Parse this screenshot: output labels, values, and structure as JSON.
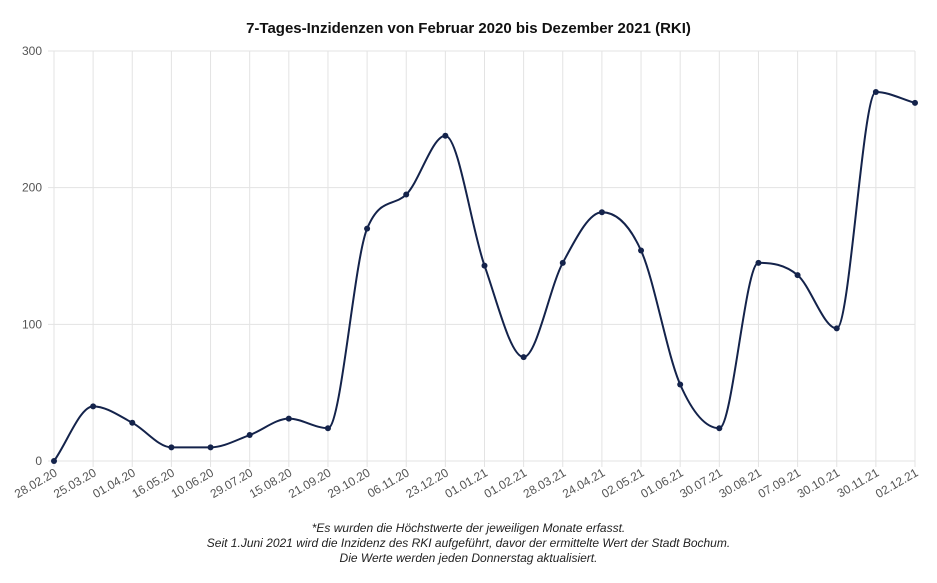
{
  "chart_data": {
    "type": "line",
    "title": "7-Tages-Inzidenzen von Februar 2020 bis Dezember 2021 (RKI)",
    "xlabel": "",
    "ylabel": "",
    "ylim": [
      0,
      300
    ],
    "yticks": [
      "0",
      "100",
      "200",
      "300"
    ],
    "grid": true,
    "legend": "none",
    "categories": [
      "28.02.20",
      "25.03.20",
      "01.04.20",
      "16.05.20",
      "10.06.20",
      "29.07.20",
      "15.08.20",
      "21.09.20",
      "29.10.20",
      "06.11.20",
      "23.12.20",
      "01.01.21",
      "01.02.21",
      "28.03.21",
      "24.04.21",
      "02.05.21",
      "01.06.21",
      "30.07.21",
      "30.08.21",
      "07.09.21",
      "30.10.21",
      "30.11.21",
      "02.12.21"
    ],
    "values": [
      0,
      40,
      28,
      10,
      10,
      19,
      31,
      24,
      170,
      195,
      238,
      143,
      76,
      145,
      182,
      154,
      56,
      24,
      145,
      136,
      97,
      270,
      262
    ],
    "line_color": "#14234b"
  },
  "footnote": {
    "line1": "*Es wurden die Höchstwerte der jeweiligen Monate erfasst.",
    "line2": "Seit 1.Juni 2021 wird die Inzidenz des RKI aufgeführt, davor der ermittelte Wert der Stadt Bochum.",
    "line3": "Die Werte werden jeden Donnerstag aktualisiert."
  }
}
